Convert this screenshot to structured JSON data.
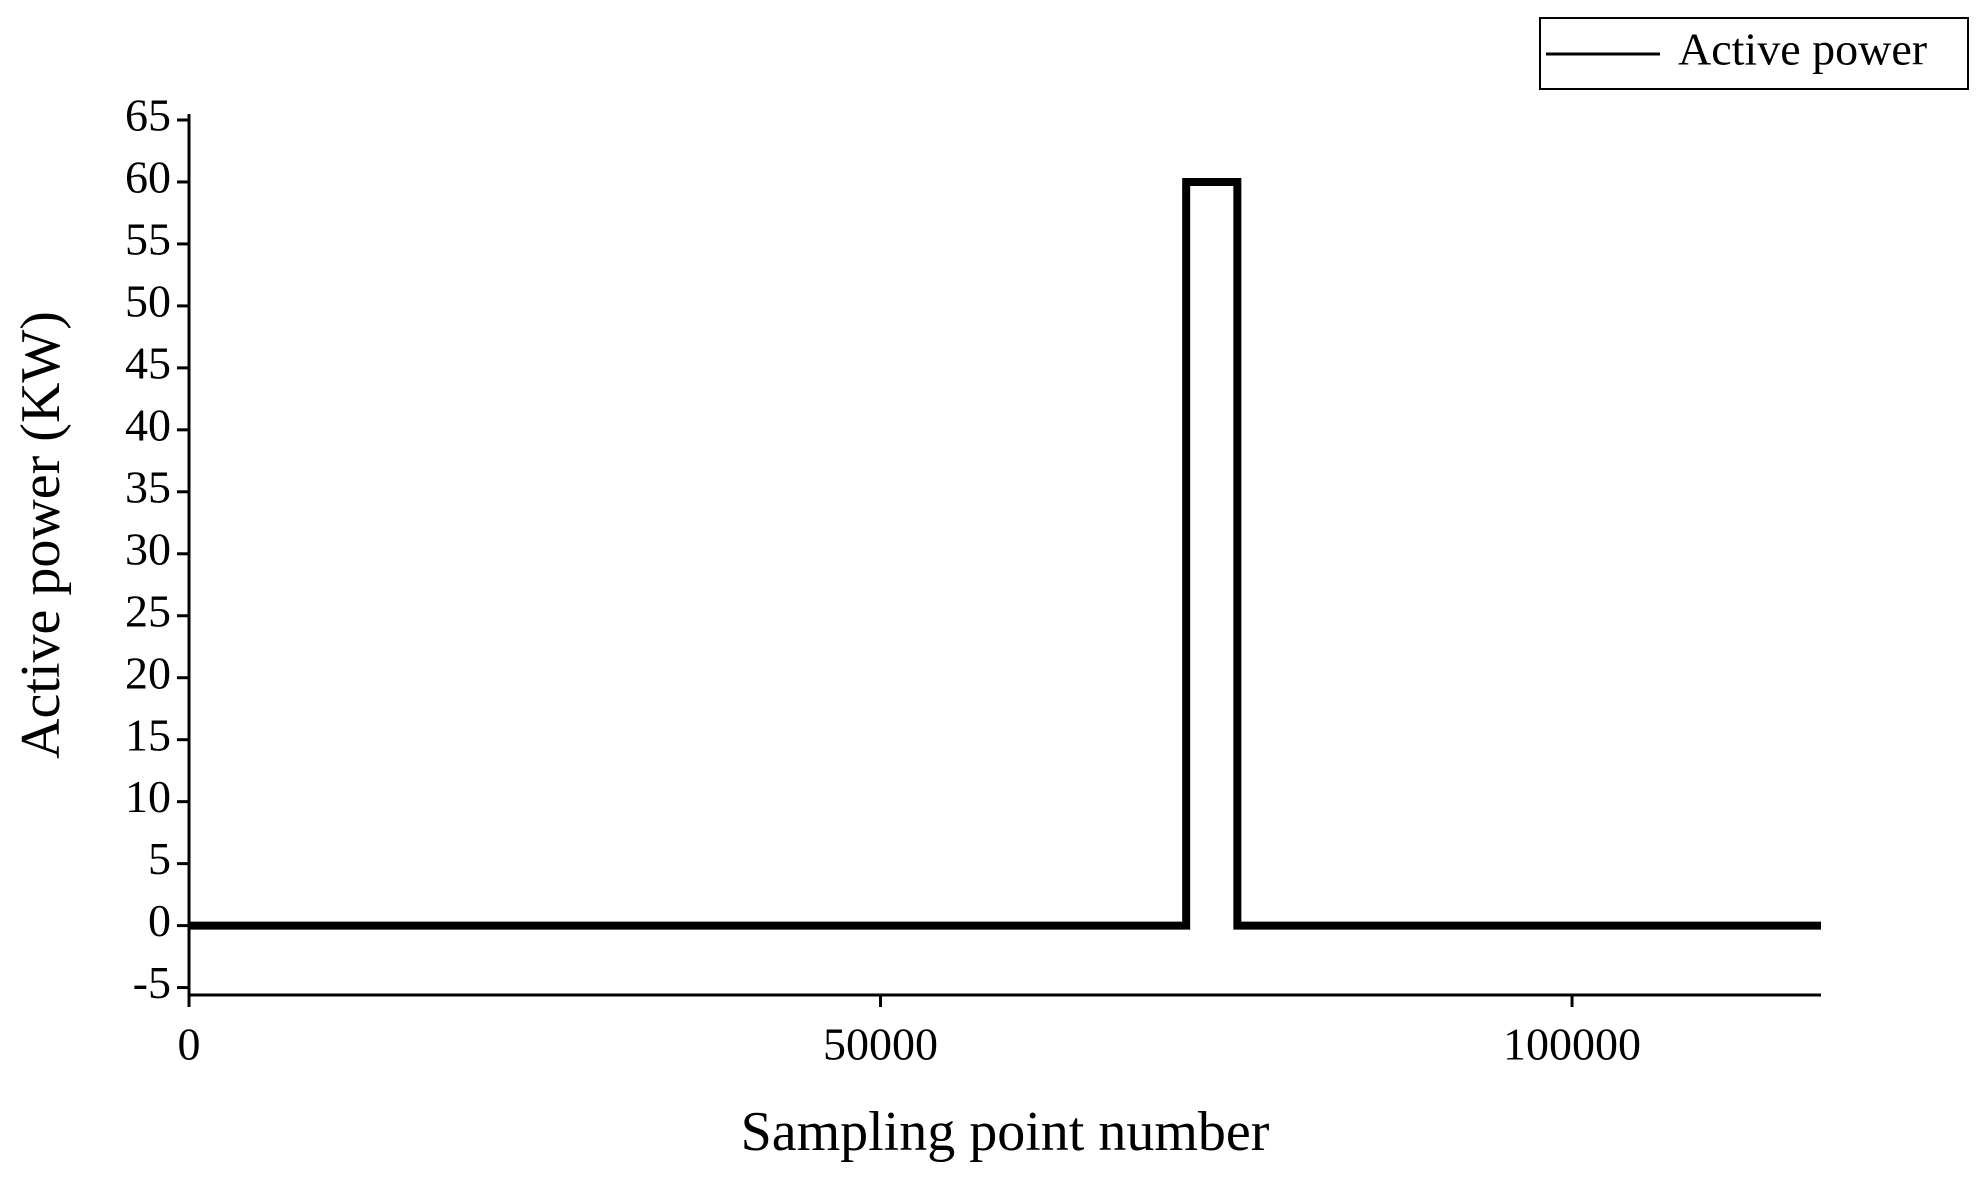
{
  "chart_data": {
    "type": "line",
    "x_label": "Sampling point number",
    "y_label": "Active power (KW)",
    "x": [
      0,
      72100,
      72100,
      75800,
      75800,
      118000
    ],
    "series": [
      {
        "name": "Active power",
        "color": "#000000",
        "values": [
          0,
          0,
          60,
          60,
          0,
          0
        ]
      }
    ],
    "xlim": [
      0,
      118000
    ],
    "xticks": [
      0,
      50000,
      100000
    ],
    "ylim": [
      -5.6,
      65
    ],
    "yticks": [
      -5,
      0,
      5,
      10,
      15,
      20,
      25,
      30,
      35,
      40,
      45,
      50,
      55,
      60,
      65
    ],
    "grid": false,
    "legend": "top-right"
  }
}
